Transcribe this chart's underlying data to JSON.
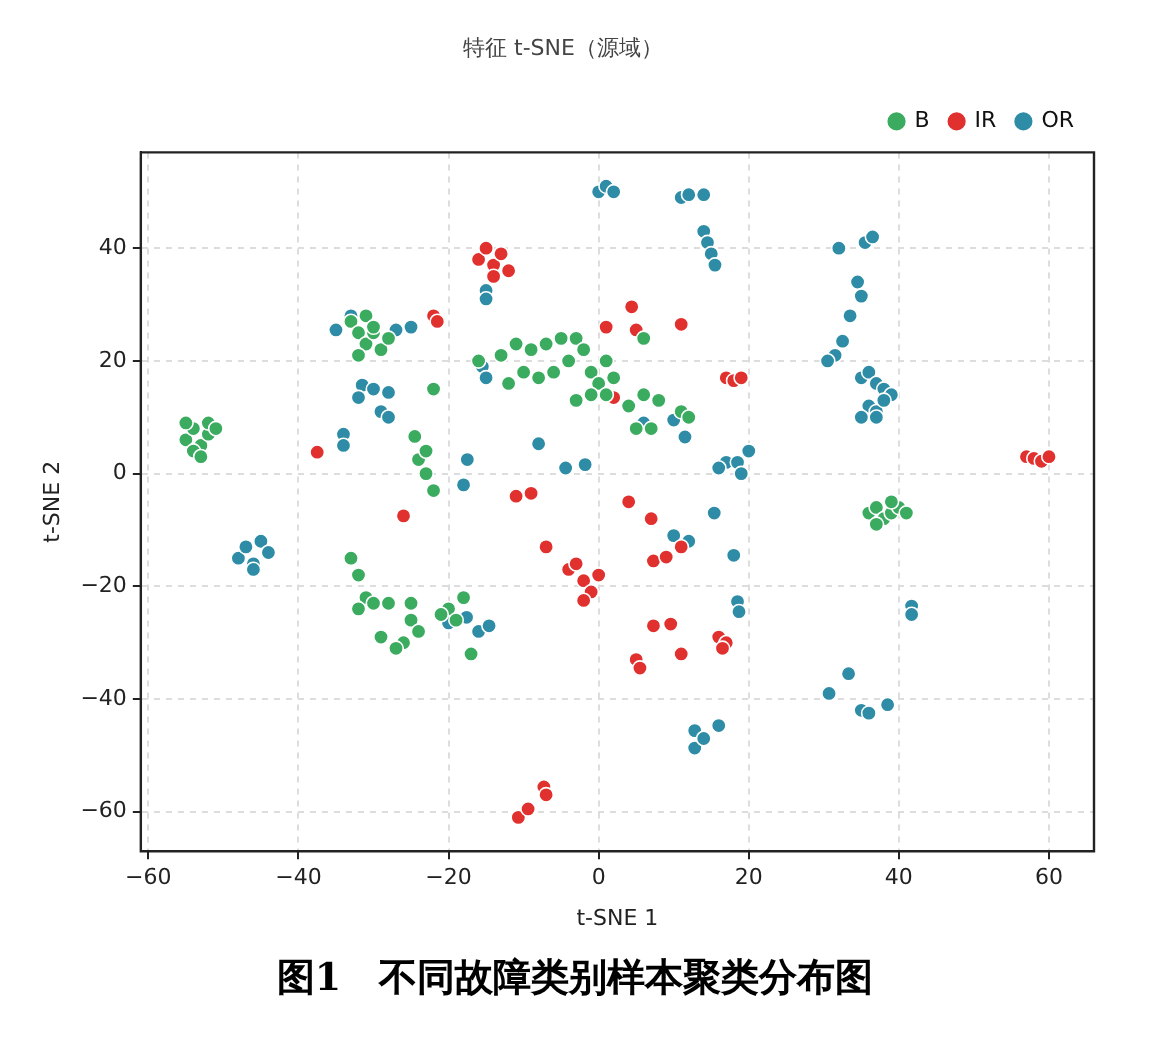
{
  "chart_data": {
    "type": "scatter",
    "title": "特征 t-SNE（源域）",
    "xlabel": "t-SNE 1",
    "ylabel": "t-SNE 2",
    "annotations": [
      "图1　不同故障类别样本聚类分布图"
    ],
    "xlim": [
      -61,
      66
    ],
    "ylim": [
      -67,
      57
    ],
    "xticks": [
      -60,
      -40,
      -20,
      0,
      20,
      40,
      60
    ],
    "yticks": [
      -60,
      -40,
      -20,
      0,
      20,
      40
    ],
    "grid": true,
    "legend": "top right",
    "marker": "circle",
    "series": [
      {
        "name": "B",
        "color": "#3aab5f",
        "x": [
          -55,
          -54,
          -53,
          -52,
          -54,
          -52,
          -55,
          -53,
          -51,
          -33,
          -32,
          -31,
          -30,
          -29,
          -31,
          -32,
          -28,
          -30,
          -22,
          -16,
          -13,
          -11,
          -9,
          -7,
          -5,
          -3,
          -2,
          -4,
          -6,
          -8,
          -10,
          -12,
          -1,
          0,
          1,
          2,
          1,
          -1,
          -3,
          4,
          6,
          8,
          5,
          7,
          11,
          12,
          6,
          -24.5,
          -24,
          -23,
          -22,
          -23,
          -33,
          -32,
          -31,
          -30,
          -28,
          -32,
          -25,
          -25,
          -24,
          -26,
          -27,
          -29,
          -20,
          -19,
          -18,
          -17,
          -21,
          36,
          37,
          38,
          39,
          40,
          41,
          37,
          39
        ],
        "values": [
          6,
          8,
          5,
          7,
          4,
          9,
          9,
          3,
          8,
          27,
          25,
          23,
          25,
          22,
          28,
          21,
          24,
          26,
          15,
          20,
          21,
          23,
          22,
          23,
          24,
          24,
          22,
          20,
          18,
          17,
          18,
          16,
          18,
          16,
          14,
          17,
          20,
          14,
          13,
          12,
          14,
          13,
          8,
          8,
          11,
          10,
          24,
          6.6,
          2.5,
          0,
          -3,
          4,
          -15,
          -18,
          -22,
          -23,
          -23,
          -24,
          -23,
          -26,
          -28,
          -30,
          -31,
          -29,
          -24,
          -26,
          -22,
          -32,
          -25,
          -7,
          -6,
          -8,
          -7,
          -6,
          -7,
          -9,
          -5
        ]
      },
      {
        "name": "IR",
        "color": "#e0312f",
        "x": [
          -37.5,
          -16,
          -15,
          -14,
          -13,
          -12,
          -14,
          -22,
          -21.5,
          1,
          4.4,
          5,
          11,
          2,
          17,
          18,
          19,
          57,
          58,
          59,
          60,
          -11,
          -9,
          -26,
          -7,
          -4,
          -3,
          -2,
          -1,
          0,
          -2,
          -10.7,
          -9.4,
          -7.3,
          -7,
          4,
          7,
          7.3,
          9,
          11,
          7.3,
          9.6,
          11,
          5,
          5.5,
          16,
          17,
          16.5
        ],
        "values": [
          3.8,
          38,
          40,
          37,
          39,
          36,
          35,
          28,
          27,
          26,
          29.6,
          25.5,
          26.5,
          13.5,
          17,
          16.5,
          17,
          3,
          2.7,
          2.2,
          3,
          -4,
          -3.5,
          -7.5,
          -13,
          -17,
          -16,
          -19,
          -21,
          -18,
          -22.5,
          -61,
          -59.5,
          -55.6,
          -57,
          -5,
          -8,
          -15.5,
          -14.8,
          -13,
          -27,
          -26.7,
          -32,
          -33,
          -34.5,
          -29,
          -30,
          -31
        ]
      },
      {
        "name": "OR",
        "color": "#2e8ca6",
        "x": [
          0,
          1,
          2,
          11,
          12,
          14,
          14,
          14.5,
          15,
          15.5,
          32,
          35.5,
          36.5,
          34.5,
          35,
          33.5,
          32.5,
          31.5,
          30.5,
          35,
          36,
          37,
          38,
          39,
          36,
          37,
          38,
          35,
          37,
          10,
          11.5,
          6,
          17,
          18.5,
          20,
          19,
          16,
          -35,
          -33,
          -27,
          -25,
          -15,
          -15,
          -15.5,
          -15,
          -31.5,
          -32,
          -30,
          -28,
          -29,
          -28,
          -34,
          -34,
          -17.5,
          -18,
          -8,
          -4.4,
          -1.8,
          -48,
          -47,
          -46,
          -45,
          -44,
          -46,
          -20,
          -17.6,
          -16,
          -14.6,
          15.4,
          10,
          12,
          18,
          18.5,
          18.7,
          41.7,
          41.7,
          33.3,
          30.7,
          35,
          36,
          38.5,
          12.8,
          12.8,
          16,
          14
        ],
        "values": [
          50,
          51,
          50,
          49,
          49.5,
          49.5,
          43,
          41,
          39,
          37,
          40,
          41,
          42,
          34,
          31.5,
          28,
          23.5,
          21,
          20,
          17,
          18,
          16,
          15,
          14,
          12,
          11,
          13,
          10,
          10,
          9.5,
          6.5,
          9,
          2,
          2,
          4,
          0,
          1,
          25.5,
          28,
          25.5,
          26,
          32.5,
          31,
          19,
          17,
          15.7,
          13.5,
          15,
          14.4,
          11,
          10,
          7,
          5,
          2.5,
          -2,
          5.3,
          1,
          1.6,
          -15,
          -13,
          -16,
          -12,
          -14,
          -17,
          -26.5,
          -25.5,
          -28,
          -27,
          -7,
          -11,
          -12,
          -14.5,
          -22.7,
          -24.5,
          -23.5,
          -25,
          -35.5,
          -39,
          -42,
          -42.5,
          -41,
          -45.6,
          -48.7,
          -44.7,
          -47
        ]
      }
    ]
  }
}
